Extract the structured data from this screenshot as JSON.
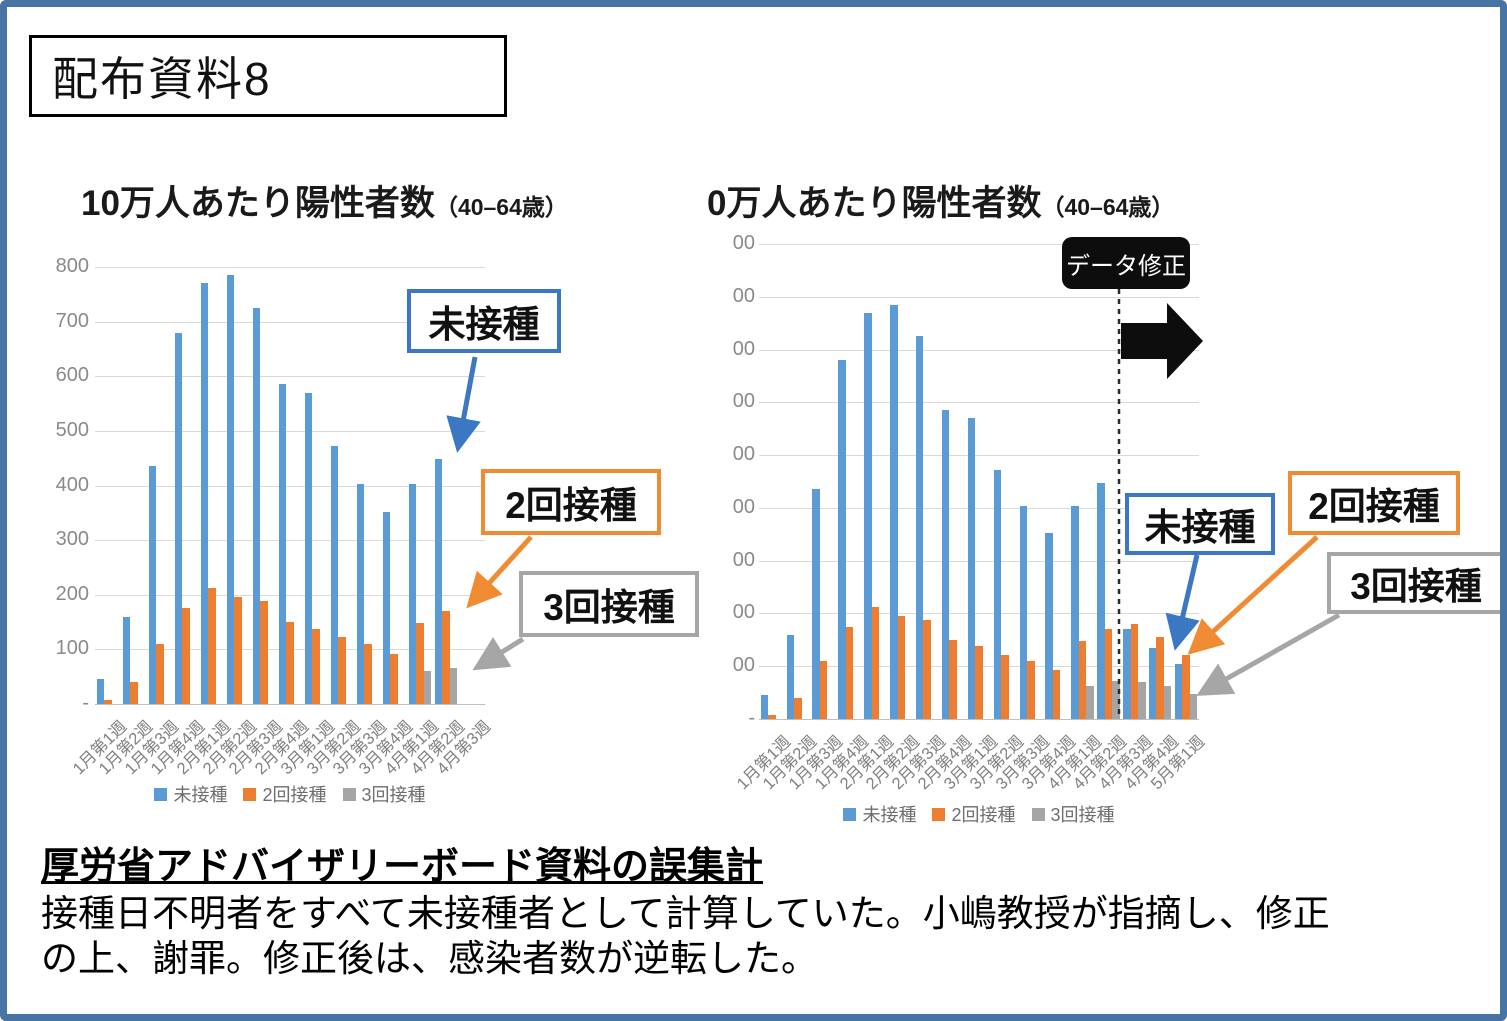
{
  "header": {
    "title": "配布資料8"
  },
  "chart_data": [
    {
      "id": "before-correction",
      "type": "bar",
      "title": "10万人あたり陽性者数",
      "title_suffix": "（40–64歳）",
      "categories": [
        "1月第1週",
        "1月第2週",
        "1月第3週",
        "1月第4週",
        "2月第1週",
        "2月第2週",
        "2月第3週",
        "2月第4週",
        "3月第1週",
        "3月第2週",
        "3月第3週",
        "3月第4週",
        "4月第1週",
        "4月第2週",
        "4月第3週"
      ],
      "series": [
        {
          "name": "未接種",
          "color": "#5B9BD5",
          "values": [
            45,
            160,
            435,
            680,
            770,
            785,
            725,
            585,
            570,
            472,
            403,
            352,
            403,
            448,
            null
          ]
        },
        {
          "name": "2回接種",
          "color": "#ED7D31",
          "values": [
            8,
            40,
            110,
            175,
            212,
            195,
            188,
            150,
            138,
            122,
            110,
            92,
            148,
            170,
            null
          ]
        },
        {
          "name": "3回接種",
          "color": "#A5A5A5",
          "values": [
            null,
            null,
            null,
            null,
            null,
            null,
            null,
            null,
            null,
            null,
            null,
            null,
            60,
            66,
            null
          ]
        }
      ],
      "ylim": [
        0,
        800
      ],
      "yticks": [
        "800",
        "700",
        "600",
        "500",
        "400",
        "300",
        "200",
        "100",
        "-"
      ],
      "grid": true,
      "legend_position": "bottom"
    },
    {
      "id": "after-correction",
      "type": "bar",
      "title": "0万人あたり陽性者数",
      "title_suffix": "（40–64歳）",
      "categories": [
        "1月第1週",
        "1月第2週",
        "1月第3週",
        "1月第4週",
        "2月第1週",
        "2月第2週",
        "2月第3週",
        "2月第4週",
        "3月第1週",
        "3月第2週",
        "3月第3週",
        "3月第4週",
        "4月第1週",
        "4月第2週",
        "4月第3週",
        "4月第4週",
        "5月第1週"
      ],
      "series": [
        {
          "name": "未接種",
          "color": "#5B9BD5",
          "values": [
            45,
            160,
            435,
            680,
            770,
            785,
            725,
            585,
            570,
            472,
            403,
            352,
            403,
            448,
            170,
            135,
            105
          ]
        },
        {
          "name": "2回接種",
          "color": "#ED7D31",
          "values": [
            8,
            40,
            110,
            175,
            212,
            195,
            188,
            150,
            138,
            122,
            110,
            92,
            148,
            170,
            180,
            155,
            122
          ]
        },
        {
          "name": "3回接種",
          "color": "#A5A5A5",
          "values": [
            null,
            null,
            null,
            null,
            null,
            null,
            null,
            null,
            null,
            null,
            null,
            null,
            62,
            72,
            70,
            62,
            48
          ]
        }
      ],
      "ylim": [
        0,
        900
      ],
      "yticks": [
        "00",
        "00",
        "00",
        "00",
        "00",
        "00",
        "00",
        "00",
        "00",
        "-"
      ],
      "grid": true,
      "legend_position": "bottom",
      "annotation": "データ修正"
    }
  ],
  "callouts": {
    "left": {
      "unvaccinated": "未接種",
      "two_dose": "2回接種",
      "three_dose": "3回接種"
    },
    "right": {
      "unvaccinated": "未接種",
      "two_dose": "2回接種",
      "three_dose": "3回接種",
      "correction": "データ修正"
    }
  },
  "footer": {
    "heading": "厚労省アドバイザリーボード資料の誤集計",
    "line1": "接種日不明者をすべて未接種者として計算していた。小嶋教授が指摘し、修正",
    "line2": "の上、謝罪。修正後は、感染者数が逆転した。"
  },
  "colors": {
    "unvaccinated": "#5B9BD5",
    "two_dose": "#ED7D31",
    "three_dose": "#A5A5A5",
    "frame": "#4674A4",
    "callout_blue": "#3B77C2",
    "callout_orange": "#EF8B32",
    "callout_gray": "#A6A6A6"
  }
}
